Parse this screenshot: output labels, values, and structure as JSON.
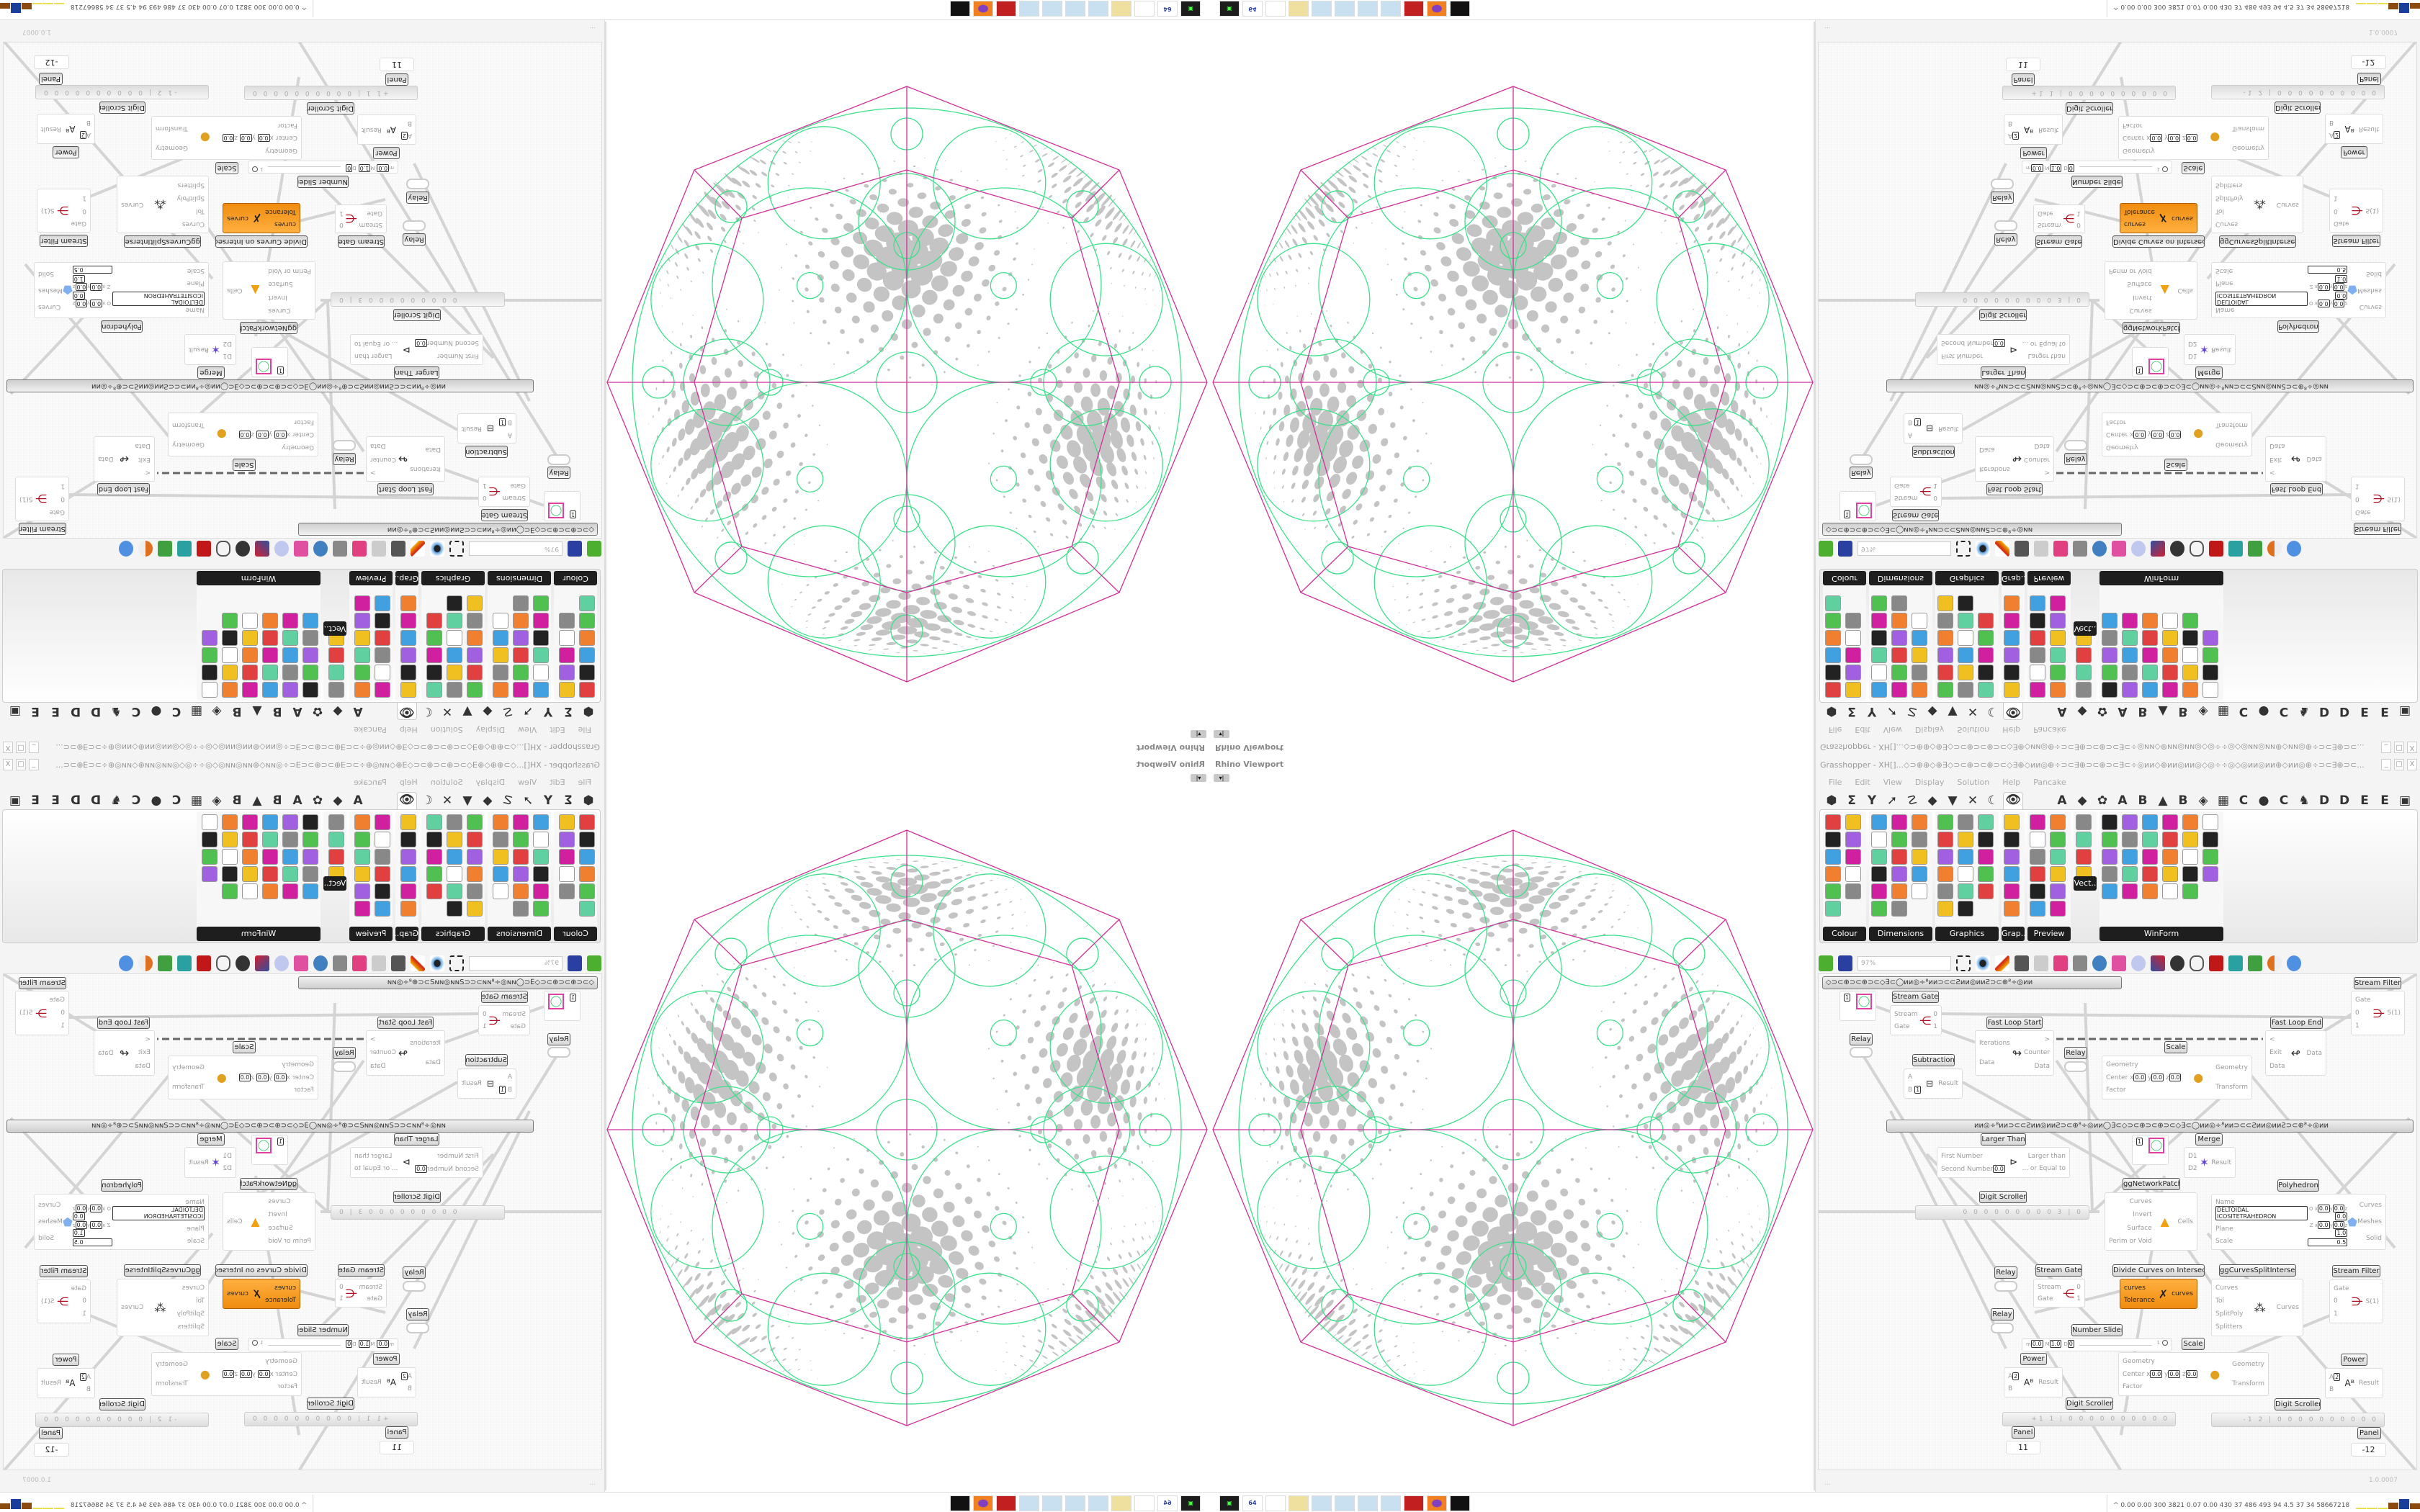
{
  "viewport": {
    "title": "Rhino Viewport",
    "toggle": "▾|"
  },
  "grasshopper": {
    "title": "Grasshopper - XH[]...◇⊃⊕⊕◇⊕∃◇⊃⊂⊕⊃⊂⊕⊃⊂◇∃⊕◇ᴎᴎ◎⊕÷⊃⊂∃⊕⊃⊂⊕⊃⊂∃⊂÷◎ᴎᴎ◇⊕ᴎᴎ◎ᴎᴎ◎◇◎÷÷◎◇◎ᴎᴎ◎ᴎᴎ⊕◇ᴎᴎ◎⊕÷⊃⊂∃⊕⊃⊂...",
    "window_buttons": [
      "_",
      "□",
      "X"
    ],
    "menu": [
      "File",
      "Edit",
      "View",
      "Display",
      "Solution",
      "Help",
      "Pancake"
    ],
    "tabs": [
      "⬢",
      "Σ",
      "Y",
      "➚",
      "☡",
      "◆",
      "▼",
      "✕",
      "☾",
      "👁",
      "A",
      "◆",
      "✿",
      "A",
      "B",
      "▲",
      "B",
      "◈",
      "▦",
      "C",
      "●",
      "C",
      "♞",
      "D",
      "D",
      "E",
      "E",
      "▣"
    ],
    "palette_groups": [
      "Colour",
      "Dimensions",
      "Graphics",
      "Grap..",
      "Preview",
      "Vect..",
      "WinForm"
    ],
    "zoom": "97%",
    "status_left": "...",
    "version": "1.0.0007"
  },
  "canvas": {
    "group_top": "◇⊃⊂⊕⊃⊂⊕⊃⊂◇∃⊂◯ᴎᴎ◎÷⁸ᴎᴎ⊃⊂⊂Ƨᴎᴎ◎ᴎᴎƧ⊃⊂⊕⁸÷◎ᴎᴎ",
    "group_mid": "ᴎᴎ◎÷⁸ᴎᴎ⊃⊂⊂Ƨᴎᴎ◎ᴎᴎƧ⊃⊂⊕⁸÷◎ᴎᴎ◯∃⊂◇⊃⊂⊕⊃⊂⊕⊃⊂◇∃⊂◯ᴎᴎ◎÷⁸ᴎᴎ⊃⊂⊂Ƨᴎᴎ◎ᴎᴎƧ⊃⊂⊕⁸÷◎ᴎᴎ",
    "stream_filter": {
      "label": "Stream Filter",
      "inputs": [
        "Gate",
        "0",
        "1"
      ],
      "output": "S(1)"
    },
    "stream_gate": {
      "label": "Stream Gate",
      "inputs": [
        "Stream",
        "Gate"
      ],
      "outputs": [
        "0",
        "1"
      ]
    },
    "relay": "Relay",
    "fast_loop_start": {
      "label": "Fast Loop Start",
      "inputs": [
        "Iterations",
        "Data"
      ],
      "outputs": [
        ">",
        "Counter",
        "Data"
      ]
    },
    "fast_loop_end": {
      "label": "Fast Loop End",
      "inputs": [
        "<",
        "Exit",
        "Data"
      ],
      "output": "Data"
    },
    "subtraction": {
      "label": "Subtraction",
      "inputs": [
        "A",
        "B"
      ],
      "b_value": "1",
      "output": "Result"
    },
    "scale": {
      "label": "Scale",
      "inputs": [
        "Geometry",
        "Center",
        "Factor"
      ],
      "outputs": [
        "Geometry",
        "Transform"
      ],
      "center": [
        "0.0",
        "0.0",
        "0.0"
      ]
    },
    "circle_param_value": "1",
    "larger_than": {
      "label": "Larger Than",
      "inputs": [
        "First Number",
        "Second Number"
      ],
      "second_value": "0.0",
      "outputs": [
        "Larger than",
        "... or Equal to"
      ]
    },
    "merge": {
      "label": "Merge",
      "inputs": [
        "D1",
        "D2"
      ],
      "output": "Result"
    },
    "network_patch": {
      "label": "ggNetworkPatch",
      "inputs": [
        "Curves",
        "Invert",
        "Surface",
        "Perim or Void"
      ],
      "output": "Cells"
    },
    "polyhedron": {
      "label": "Polyhedron",
      "inputs": [
        "Name",
        "Plane",
        "Scale"
      ],
      "name_value": "DELTOIDAL ICOSITETRAHEDRON",
      "origin": [
        "0.0",
        "0.0",
        "0.0"
      ],
      "zaxis": [
        "0.0",
        "0.0",
        "1.0"
      ],
      "scale_value": "0.5",
      "outputs": [
        "Curves",
        "Meshes",
        "Solid"
      ]
    },
    "digit_scroller": {
      "label": "Digit Scroller",
      "values": [
        "0 0 0 0 0 0 0 0 0 3 | 0",
        "+1 1 | 0 0 0 0 0 0 0 0 0 0",
        "-1 2 | 0 0 0 0 0 0 0 0 0 0"
      ]
    },
    "divide_curves": {
      "label": "Divide Curves on Intersections",
      "inputs": [
        "curves",
        "Tolerance"
      ],
      "output": "curves"
    },
    "curves_split": {
      "label": "ggCurvesSplitIntersect",
      "inputs": [
        "Curves",
        "Tol",
        "SplitPoly",
        "Splitters"
      ],
      "output": "Curves"
    },
    "number_slider": {
      "label": "Number Slider",
      "min": "0.0",
      "max": "1.0",
      "decimals": "0",
      "value": "1"
    },
    "power": {
      "label": "Power",
      "inputs": [
        "A",
        "B"
      ],
      "a_value": "2",
      "output": "Result"
    },
    "panel": {
      "label": "Panel",
      "values": [
        "11",
        "-12"
      ]
    }
  },
  "taskbar": {
    "apps": [
      "terminal",
      "floppy-64",
      "blank",
      "folder",
      "notepad",
      "notepad",
      "notepad",
      "notepad",
      "red-app",
      "firefox",
      "inkscape"
    ],
    "floppy_label": "64",
    "tray_text": "^ 0.00 0.00 300 3821 0.07 0.00 430 37 486 493 94 4.5 37 34 58667218",
    "tray_bar_colors": [
      "#e8e050",
      "#e8e050",
      "#e8e050",
      "#8a4a10",
      "#1a3f9a",
      "#8a4a10",
      "#50c040",
      "#c02020"
    ]
  },
  "colors": {
    "magenta": "#d0309a",
    "green": "#3de08a",
    "dots": "#c4c4c4",
    "orange": "#f4941c"
  }
}
